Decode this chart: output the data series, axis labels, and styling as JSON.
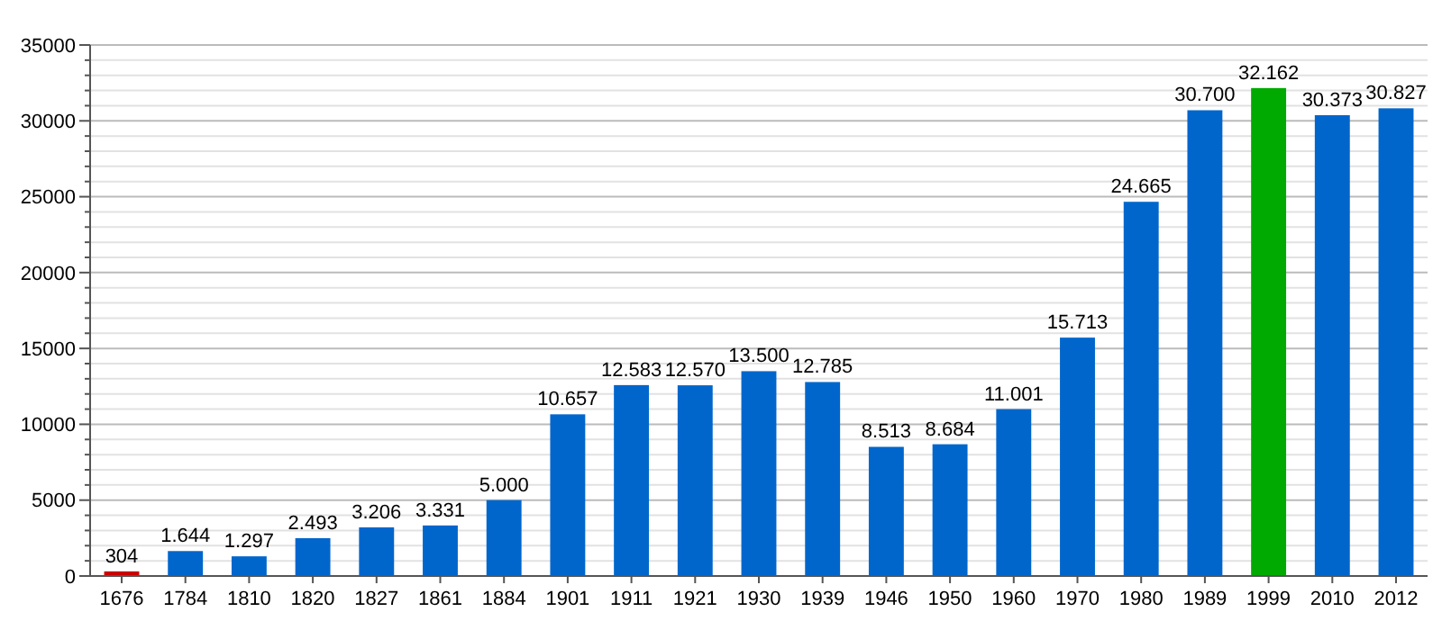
{
  "chart_data": {
    "type": "bar",
    "categories": [
      "1676",
      "1784",
      "1810",
      "1820",
      "1827",
      "1861",
      "1884",
      "1901",
      "1911",
      "1921",
      "1930",
      "1939",
      "1946",
      "1950",
      "1960",
      "1970",
      "1980",
      "1989",
      "1999",
      "2010",
      "2012"
    ],
    "values": [
      304,
      1644,
      1297,
      2493,
      3206,
      3331,
      5000,
      10657,
      12583,
      12570,
      13500,
      12785,
      8513,
      8684,
      11001,
      15713,
      24665,
      30700,
      32162,
      30373,
      30827
    ],
    "value_labels": [
      "304",
      "1.644",
      "1.297",
      "2.493",
      "3.206",
      "3.331",
      "5.000",
      "10.657",
      "12.583",
      "12.570",
      "13.500",
      "12.785",
      "8.513",
      "8.684",
      "11.001",
      "15.713",
      "24.665",
      "30.700",
      "32.162",
      "30.373",
      "30.827"
    ],
    "colors": [
      "#cc0000",
      "#0066cc",
      "#0066cc",
      "#0066cc",
      "#0066cc",
      "#0066cc",
      "#0066cc",
      "#0066cc",
      "#0066cc",
      "#0066cc",
      "#0066cc",
      "#0066cc",
      "#0066cc",
      "#0066cc",
      "#0066cc",
      "#0066cc",
      "#0066cc",
      "#0066cc",
      "#00aa00",
      "#0066cc",
      "#0066cc"
    ],
    "ylim": [
      0,
      35000
    ],
    "yticks": [
      0,
      {
        "value": 1000,
        "label": null
      },
      {
        "value": 2000,
        "label": null
      },
      {
        "value": 3000,
        "label": null
      },
      {
        "value": 4000,
        "label": null
      },
      5000,
      {
        "value": 6000,
        "label": null
      },
      {
        "value": 7000,
        "label": null
      },
      {
        "value": 8000,
        "label": null
      },
      {
        "value": 9000,
        "label": null
      },
      10000,
      {
        "value": 11000,
        "label": null
      },
      {
        "value": 12000,
        "label": null
      },
      {
        "value": 13000,
        "label": null
      },
      {
        "value": 14000,
        "label": null
      },
      15000,
      {
        "value": 16000,
        "label": null
      },
      {
        "value": 17000,
        "label": null
      },
      {
        "value": 18000,
        "label": null
      },
      {
        "value": 19000,
        "label": null
      },
      20000,
      {
        "value": 21000,
        "label": null
      },
      {
        "value": 22000,
        "label": null
      },
      {
        "value": 23000,
        "label": null
      },
      {
        "value": 24000,
        "label": null
      },
      25000,
      {
        "value": 26000,
        "label": null
      },
      {
        "value": 27000,
        "label": null
      },
      {
        "value": 28000,
        "label": null
      },
      {
        "value": 29000,
        "label": null
      },
      30000,
      {
        "value": 31000,
        "label": null
      },
      {
        "value": 32000,
        "label": null
      },
      {
        "value": 33000,
        "label": null
      },
      {
        "value": 34000,
        "label": null
      },
      35000
    ],
    "grid": true
  }
}
